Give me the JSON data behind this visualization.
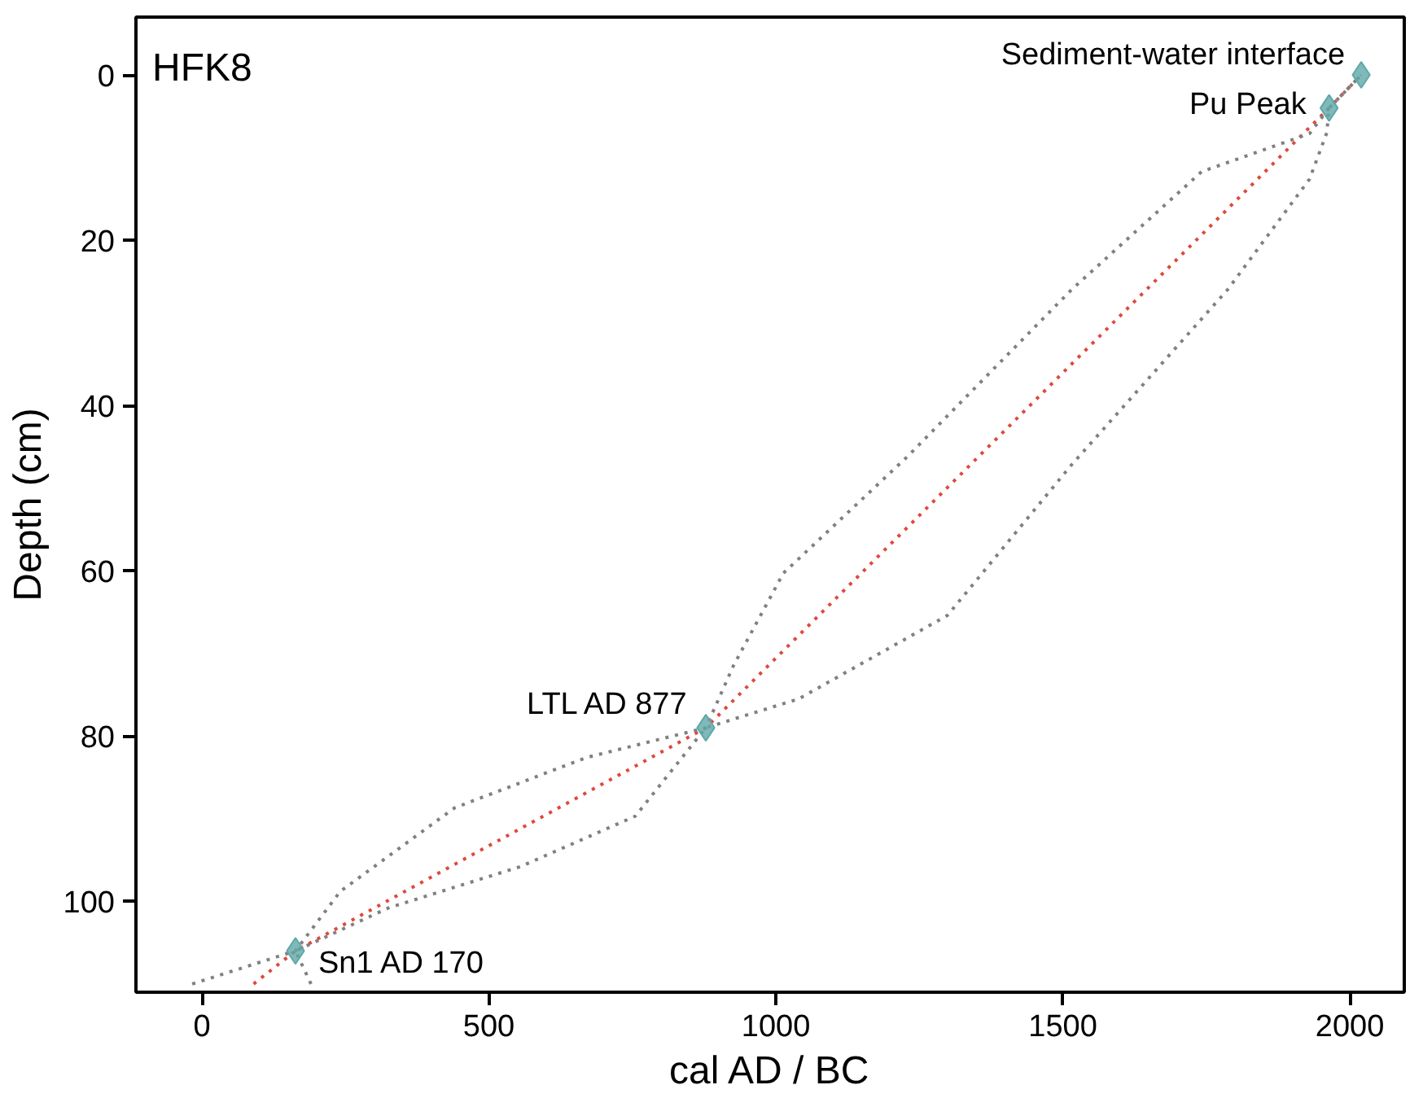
{
  "chart_data": {
    "type": "line",
    "title": "HFK8",
    "xlabel": "cal AD / BC",
    "ylabel": "Depth (cm)",
    "xlim": [
      -115,
      2095
    ],
    "ylim": [
      111,
      -7
    ],
    "xticks": [
      0,
      500,
      1000,
      1500,
      2000
    ],
    "yticks": [
      0,
      20,
      40,
      60,
      80,
      100
    ],
    "grid": false,
    "line_style": "dotted",
    "series": [
      {
        "color": "#e0483c",
        "x": [
          90,
          163,
          878,
          1964,
          2020
        ],
        "values": [
          110,
          106,
          79,
          4,
          0
        ]
      },
      {
        "color": "#808080",
        "x": [
          -17,
          163,
          241,
          440,
          670,
          878,
          926,
          1013,
          1229,
          1515,
          1742,
          1930,
          1964,
          2020
        ],
        "values": [
          110,
          106,
          98.8,
          88.7,
          82.6,
          79,
          71.5,
          60.3,
          46.2,
          26,
          11.7,
          7.1,
          4,
          0
        ]
      },
      {
        "color": "#808080",
        "x": [
          190,
          163,
          325,
          555,
          755,
          878,
          1040,
          1299,
          1515,
          1787,
          1930,
          1960,
          1964,
          2020
        ],
        "values": [
          110,
          106,
          100.8,
          95.8,
          89.7,
          79,
          75.5,
          65.4,
          47.2,
          26,
          12.6,
          7,
          4,
          0
        ]
      },
      {
        "type": "scatter",
        "marker": "diamond",
        "color": "#5fa8a8",
        "x": [
          163,
          878,
          1964,
          2020
        ],
        "values": [
          106,
          79,
          4,
          0
        ]
      }
    ],
    "annotations": [
      {
        "text": "Sediment-water interface",
        "x": 2020,
        "y": 0
      },
      {
        "text": "Pu Peak",
        "x": 1964,
        "y": 4
      },
      {
        "text": "LTL AD 877",
        "x": 878,
        "y": 79
      },
      {
        "text": "Sn1 AD 170",
        "x": 163,
        "y": 106
      }
    ]
  }
}
